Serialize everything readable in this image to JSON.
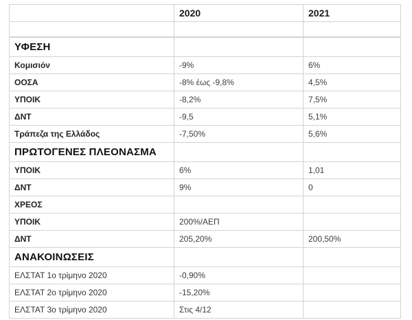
{
  "table": {
    "border_color": "#d3d3d3",
    "col_headers": [
      "",
      "2020",
      "2021"
    ],
    "rows": [
      {
        "type": "empty",
        "label": "",
        "y2020": "",
        "y2021": ""
      },
      {
        "type": "section",
        "label": "ΥΦΕΣΗ",
        "y2020": "",
        "y2021": ""
      },
      {
        "type": "data",
        "label": "Κομισιόν",
        "y2020": "-9%",
        "y2021": "6%"
      },
      {
        "type": "data",
        "label": "ΟΟΣΑ",
        "y2020": "-8% έως -9,8%",
        "y2021": "4,5%"
      },
      {
        "type": "data",
        "label": "ΥΠΟΙΚ",
        "y2020": "-8,2%",
        "y2021": "7,5%"
      },
      {
        "type": "data",
        "label": "ΔΝΤ",
        "y2020": "-9,5",
        "y2021": "5,1%"
      },
      {
        "type": "data",
        "label": "Τράπεζα της Ελλάδος",
        "y2020": "-7,50%",
        "y2021": "5,6%"
      },
      {
        "type": "section",
        "label": "ΠΡΩΤΟΓΕΝΕΣ ΠΛΕΟΝΑΣΜΑ",
        "y2020": "",
        "y2021": ""
      },
      {
        "type": "data",
        "label": "ΥΠΟΙΚ",
        "y2020": "6%",
        "y2021": "1,01"
      },
      {
        "type": "data",
        "label": "ΔΝΤ",
        "y2020": "9%",
        "y2021": "0"
      },
      {
        "type": "data",
        "label": "ΧΡΕΟΣ",
        "y2020": "",
        "y2021": ""
      },
      {
        "type": "data",
        "label": "ΥΠΟΙΚ",
        "y2020": "200%/ΑΕΠ",
        "y2021": ""
      },
      {
        "type": "data",
        "label": "ΔΝΤ",
        "y2020": "205,20%",
        "y2021": "200,50%"
      },
      {
        "type": "section",
        "label": "ΑΝΑΚΟΙΝΩΣΕΙΣ",
        "y2020": "",
        "y2021": ""
      },
      {
        "type": "plain",
        "label": "ΕΛΣΤΑΤ 1ο τρίμηνο 2020",
        "y2020": "-0,90%",
        "y2021": ""
      },
      {
        "type": "plain",
        "label": "ΕΛΣΤΑΤ 2ο τρίμηνο 2020",
        "y2020": "-15,20%",
        "y2021": ""
      },
      {
        "type": "plain",
        "label": "ΕΛΣΤΑΤ 3ο τρίμηνο 2020",
        "y2020": "Στις 4/12",
        "y2021": ""
      }
    ]
  }
}
